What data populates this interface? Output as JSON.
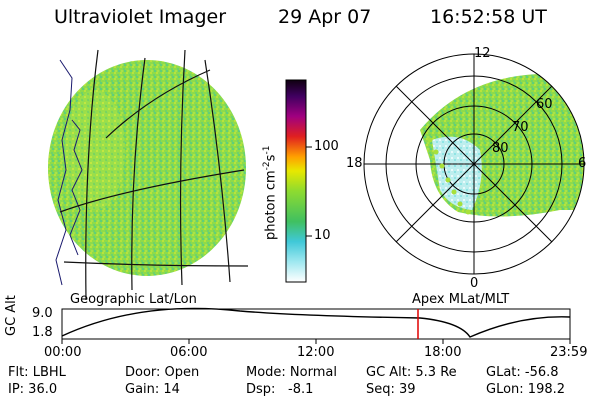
{
  "header": {
    "instrument": "Ultraviolet Imager",
    "date": "29 Apr 07",
    "time": "16:52:58 UT"
  },
  "colorbar": {
    "label": "photon cm",
    "label_exp1": "-2",
    "label_s": "s",
    "label_exp2": "-1",
    "ticks": [
      "100",
      "10"
    ]
  },
  "polar_plot": {
    "mlt_labels": {
      "top": "12",
      "right": "6",
      "bottom": "0",
      "left": "18"
    },
    "mlat_labels": [
      "60",
      "70",
      "80"
    ]
  },
  "map_labels": {
    "left": "Geographic Lat/Lon",
    "right": "Apex  MLat/MLT"
  },
  "altitude_plot": {
    "ylabel": "GC Alt",
    "yticks": [
      "9.0",
      "1.8"
    ],
    "xticks": [
      "00:00",
      "06:00",
      "12:00",
      "18:00",
      "23:59"
    ],
    "current_marker": "16:52:58"
  },
  "info": {
    "row1": {
      "flt": "Flt: LBHL",
      "door": "Door: Open",
      "mode": "Mode: Normal",
      "gcalt": "GC Alt: 5.3 Re",
      "glat": "GLat: -56.8"
    },
    "row2": {
      "ip": "IP: 36.0",
      "gain": "Gain: 14",
      "dsp_label": "Dsp:",
      "dsp_value": "-8.1",
      "seq": "Seq: 39",
      "glon": "GLon: 198.2"
    }
  },
  "colors": {
    "aurora_green": "#7fd84a",
    "aurora_yellow_green": "#b6e33a",
    "aurora_cyan": "#9fe8e8",
    "marker_red": "#e00000"
  }
}
